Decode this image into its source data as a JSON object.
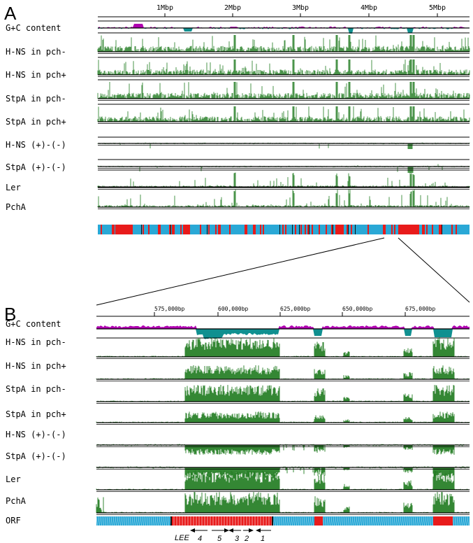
{
  "figure": {
    "panelA": {
      "letter": "A",
      "ticks": [
        "1Mbp",
        "2Mbp",
        "3Mbp",
        "4Mbp",
        "5Mbp"
      ],
      "tracks": [
        {
          "label": "G+C content",
          "type": "gc"
        },
        {
          "label": "H-NS in pch-",
          "type": "pos"
        },
        {
          "label": "H-NS in pch+",
          "type": "pos"
        },
        {
          "label": "StpA in pch-",
          "type": "pos"
        },
        {
          "label": "StpA in pch+",
          "type": "pos"
        },
        {
          "label": "H-NS (+)-(-)",
          "type": "diff"
        },
        {
          "label": "StpA (+)-(-)",
          "type": "diff"
        },
        {
          "label": "Ler",
          "type": "sparse"
        },
        {
          "label": "PchA",
          "type": "sparse"
        },
        {
          "label": "",
          "type": "orf"
        }
      ]
    },
    "panelB": {
      "letter": "B",
      "ticks": [
        "575,000bp",
        "600,000bp",
        "625,000bp",
        "650,000bp",
        "675,000bp"
      ],
      "tracks": [
        {
          "label": "G+C content",
          "type": "gc"
        },
        {
          "label": "H-NS in pch-",
          "type": "pos"
        },
        {
          "label": "H-NS in pch+",
          "type": "pos"
        },
        {
          "label": "StpA in pch-",
          "type": "pos"
        },
        {
          "label": "StpA in pch+",
          "type": "pos"
        },
        {
          "label": "H-NS (+)-(-)",
          "type": "diff"
        },
        {
          "label": "StpA (+)-(-)",
          "type": "diff"
        },
        {
          "label": "Ler",
          "type": "pos"
        },
        {
          "label": "PchA",
          "type": "pos"
        },
        {
          "label": "ORF",
          "type": "orf"
        }
      ],
      "operon": {
        "title": "LEE",
        "labels": [
          "4",
          "5",
          "3",
          "2",
          "1"
        ]
      }
    },
    "colors": {
      "gc_high": "#b000b0",
      "gc_low": "#109090",
      "signal": "#1e7a1e",
      "orf_forward": "#2aa8d6",
      "orf_reverse": "#e81b1b"
    }
  }
}
